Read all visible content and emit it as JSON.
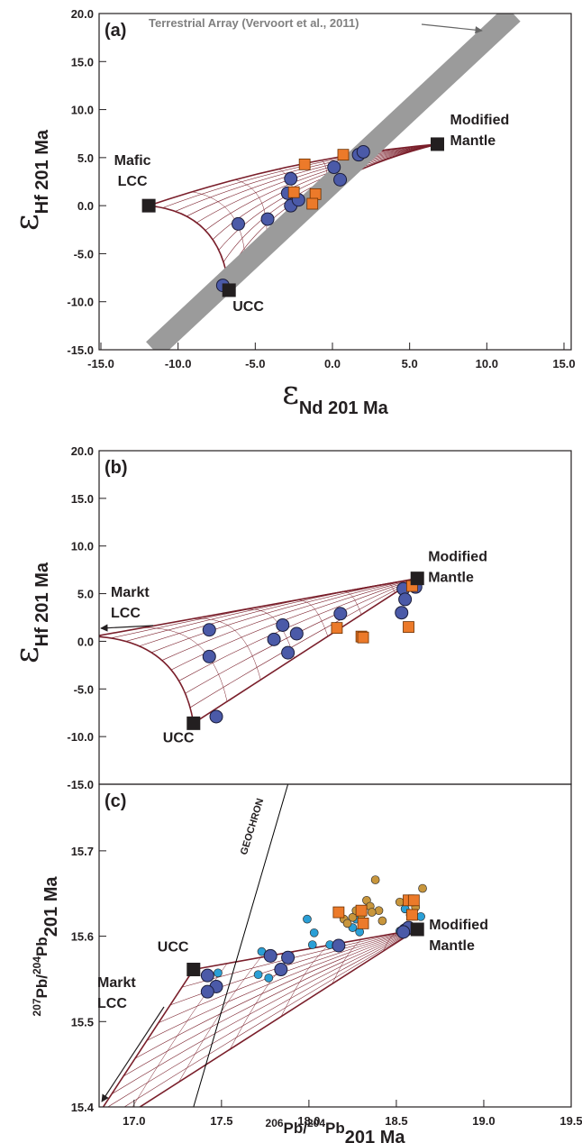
{
  "chart_data": [
    {
      "type": "scatter",
      "panel": "(a)",
      "xlabel": [
        {
          "text": "ε",
          "style": "symbol"
        },
        {
          "text": "Nd 201 Ma",
          "style": "sub"
        }
      ],
      "ylabel": [
        {
          "text": "ε",
          "style": "symbol"
        },
        {
          "text": "Hf 201 Ma",
          "style": "sub"
        }
      ],
      "xlim": [
        -15,
        15
      ],
      "ylim": [
        -15,
        20
      ],
      "xticks": [
        {
          "value": -15,
          "label": "-15.0"
        },
        {
          "value": -10,
          "label": "-10.0"
        },
        {
          "value": -5,
          "label": "-5.0"
        },
        {
          "value": 0,
          "label": "0.0"
        },
        {
          "value": 5,
          "label": "5.0"
        },
        {
          "value": 10,
          "label": "10.0"
        },
        {
          "value": 15,
          "label": "15.0"
        }
      ],
      "yticks": [
        {
          "value": 20,
          "label": "20.0"
        },
        {
          "value": 15,
          "label": "15.0"
        },
        {
          "value": 10,
          "label": "10.0"
        },
        {
          "value": 5,
          "label": "5.0"
        },
        {
          "value": 0,
          "label": "0.0"
        },
        {
          "value": -5,
          "label": "-5.0"
        },
        {
          "value": -10,
          "label": "-10.0"
        },
        {
          "value": -15,
          "label": "-15.0"
        }
      ],
      "reference_lines": [
        {
          "label": "Terrestrial Array (Vervoort et al., 2011)",
          "style": "band",
          "color": "#9b9b9b",
          "x": [
            -11.6,
            11.7
          ],
          "y": [
            -15,
            20
          ]
        }
      ],
      "series": [
        {
          "marker": "circle",
          "color": "#4b5aa8",
          "x": [
            -2.7,
            -2.9,
            -2.7,
            -2.2,
            -6.1,
            -4.2,
            0.1,
            0.5,
            1.7,
            2.0,
            -7.1
          ],
          "y": [
            2.8,
            1.3,
            0.0,
            0.6,
            -1.9,
            -1.4,
            4.0,
            2.7,
            5.3,
            5.6,
            -8.3
          ]
        },
        {
          "marker": "square",
          "color": "#ec7a2a",
          "x": [
            -1.8,
            0.7,
            -2.5,
            -1.1,
            -1.3
          ],
          "y": [
            4.3,
            5.3,
            1.4,
            1.2,
            0.2
          ]
        },
        {
          "marker": "endmember",
          "color": "#231f20",
          "x": [
            -11.9,
            -6.7,
            6.8
          ],
          "y": [
            0.0,
            -8.8,
            6.4
          ],
          "labels": [
            [
              "Mafic",
              "LCC"
            ],
            [
              "UCC"
            ],
            [
              "Modified",
              "Mantle"
            ]
          ]
        }
      ]
    },
    {
      "type": "scatter",
      "panel": "(b)",
      "ylabel": [
        {
          "text": "ε",
          "style": "symbol"
        },
        {
          "text": "Hf 201 Ma",
          "style": "sub"
        }
      ],
      "xlim": [
        16.8,
        19.5
      ],
      "ylim": [
        -15,
        20
      ],
      "yticks": [
        {
          "value": 20,
          "label": "20.0"
        },
        {
          "value": 15,
          "label": "15.0"
        },
        {
          "value": 10,
          "label": "10.0"
        },
        {
          "value": 5,
          "label": "5.0"
        },
        {
          "value": 0,
          "label": "0.0"
        },
        {
          "value": -5,
          "label": "-5.0"
        },
        {
          "value": -10,
          "label": "-10.0"
        },
        {
          "value": -15,
          "label": "-15.0"
        }
      ],
      "annotations": [
        {
          "lines": [
            "Markt",
            "LCC"
          ]
        }
      ],
      "series": [
        {
          "marker": "circle",
          "color": "#4b5aa8",
          "x": [
            17.43,
            17.43,
            17.85,
            17.8,
            17.93,
            17.88,
            18.18,
            17.47,
            18.54,
            18.55,
            18.53,
            18.61
          ],
          "y": [
            1.2,
            -1.6,
            1.7,
            0.2,
            0.8,
            -1.2,
            2.9,
            -7.9,
            5.5,
            4.4,
            3.0,
            5.7
          ]
        },
        {
          "marker": "square",
          "color": "#ec7a2a",
          "x": [
            18.16,
            18.3,
            18.31,
            18.57,
            18.59
          ],
          "y": [
            1.4,
            0.5,
            0.4,
            1.5,
            5.8
          ]
        },
        {
          "marker": "endmember",
          "color": "#231f20",
          "x": [
            17.34,
            18.62
          ],
          "y": [
            -8.6,
            6.6
          ],
          "labels": [
            [
              "UCC"
            ],
            [
              "Modified",
              "Mantle"
            ]
          ]
        }
      ]
    },
    {
      "type": "scatter",
      "panel": "(c)",
      "xlabel": [
        {
          "text": "206",
          "style": "sup"
        },
        {
          "text": "Pb/"
        },
        {
          "text": "204",
          "style": "sup"
        },
        {
          "text": "Pb"
        },
        {
          "text": "201 Ma",
          "style": "sub"
        }
      ],
      "ylabel": [
        {
          "text": "207",
          "style": "sup"
        },
        {
          "text": "Pb/"
        },
        {
          "text": "204",
          "style": "sup"
        },
        {
          "text": "Pb"
        },
        {
          "text": "201 Ma",
          "style": "sub"
        }
      ],
      "xlim": [
        16.8,
        19.5
      ],
      "ylim": [
        15.4,
        15.778
      ],
      "xticks": [
        {
          "value": 17,
          "label": "17.0"
        },
        17.5,
        {
          "value": 18,
          "label": "18.0"
        },
        18.5,
        {
          "value": 19,
          "label": "19.0"
        },
        19.5
      ],
      "yticks": [
        15.4,
        15.5,
        15.6,
        15.7
      ],
      "reference_lines": [
        {
          "label": "GEOCHRON",
          "style": "line",
          "color": "#000000",
          "x": [
            17.34,
            17.88
          ],
          "y": [
            15.4,
            15.778
          ]
        }
      ],
      "annotations": [
        {
          "lines": [
            "Markt",
            "LCC"
          ]
        }
      ],
      "series": [
        {
          "marker": "small-circle",
          "color": "#2a9fd6",
          "x": [
            17.73,
            17.77,
            17.71,
            17.48,
            17.99,
            18.03,
            18.02,
            18.25,
            18.27,
            18.29,
            18.55,
            18.58,
            18.64,
            18.52,
            18.12
          ],
          "y": [
            15.582,
            15.551,
            15.555,
            15.557,
            15.62,
            15.604,
            15.59,
            15.61,
            15.62,
            15.605,
            15.632,
            15.625,
            15.623,
            15.606,
            15.59
          ]
        },
        {
          "marker": "small-circle",
          "color": "#c8963c",
          "x": [
            18.38,
            18.65,
            18.33,
            18.35,
            18.2,
            18.25,
            18.4,
            18.3,
            18.36,
            18.52,
            18.22,
            18.42,
            18.61,
            18.27
          ],
          "y": [
            15.666,
            15.656,
            15.642,
            15.635,
            15.62,
            15.622,
            15.63,
            15.625,
            15.628,
            15.64,
            15.615,
            15.618,
            15.634,
            15.63
          ]
        },
        {
          "marker": "circle",
          "color": "#4b5aa8",
          "x": [
            17.42,
            17.47,
            17.42,
            17.78,
            17.88,
            17.84,
            18.17,
            18.55,
            18.57,
            18.54
          ],
          "y": [
            15.554,
            15.541,
            15.535,
            15.577,
            15.575,
            15.561,
            15.589,
            15.607,
            15.61,
            15.605
          ]
        },
        {
          "marker": "square",
          "color": "#ec7a2a",
          "x": [
            18.17,
            18.3,
            18.31,
            18.57,
            18.6,
            18.59
          ],
          "y": [
            15.628,
            15.63,
            15.615,
            15.642,
            15.642,
            15.625
          ]
        },
        {
          "marker": "endmember",
          "color": "#231f20",
          "x": [
            17.34,
            18.62
          ],
          "y": [
            15.561,
            15.608
          ],
          "labels": [
            [
              "UCC"
            ],
            [
              "Modified",
              "Mantle"
            ]
          ]
        }
      ]
    }
  ]
}
